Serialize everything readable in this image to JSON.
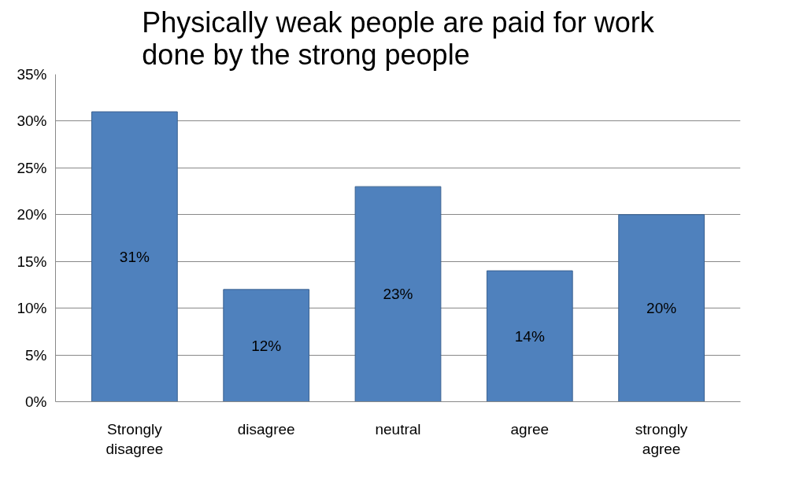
{
  "chart_data": {
    "type": "bar",
    "title": "Physically weak people are paid for work done by the strong people",
    "categories": [
      "Strongly disagree",
      "disagree",
      "neutral",
      "agree",
      "strongly agree"
    ],
    "values": [
      31,
      12,
      23,
      14,
      20
    ],
    "value_labels": [
      "31%",
      "12%",
      "23%",
      "14%",
      "20%"
    ],
    "color": "#4f81bd",
    "ylim": [
      0,
      35
    ],
    "yticks": [
      {
        "value": 0,
        "label": "0%"
      },
      {
        "value": 5,
        "label": "5%"
      },
      {
        "value": 10,
        "label": "10%"
      },
      {
        "value": 15,
        "label": "15%"
      },
      {
        "value": 20,
        "label": "20%"
      },
      {
        "value": 25,
        "label": "25%"
      },
      {
        "value": 30,
        "label": "30%"
      },
      {
        "value": 35,
        "label": "35%"
      }
    ],
    "grid": "y"
  }
}
